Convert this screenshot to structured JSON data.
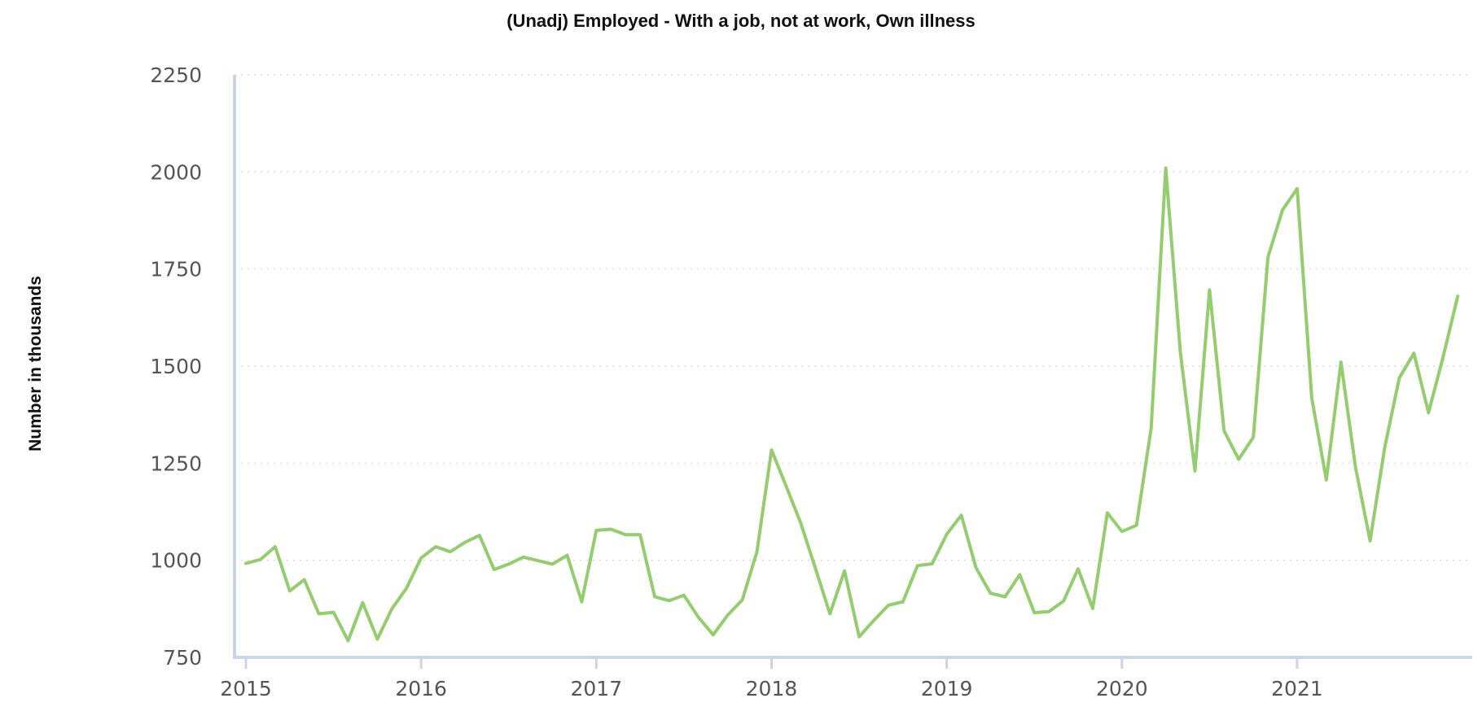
{
  "chart_data": {
    "type": "line",
    "title": "(Unadj) Employed - With a job, not at work, Own illness",
    "xlabel": "",
    "ylabel": "Number in thousands",
    "ylim": [
      750,
      2250
    ],
    "yticks": [
      750,
      1000,
      1250,
      1500,
      1750,
      2000,
      2250
    ],
    "xticks": [
      "2015",
      "2016",
      "2017",
      "2018",
      "2019",
      "2020",
      "2021"
    ],
    "x_start": "2015-01",
    "x_end": "2021-12",
    "grid": true,
    "legend": "none",
    "color": "#94cc6f",
    "series": [
      {
        "x": [
          "2015-01",
          "2015-02",
          "2015-03",
          "2015-04",
          "2015-05",
          "2015-06",
          "2015-07",
          "2015-08",
          "2015-09",
          "2015-10",
          "2015-11",
          "2015-12",
          "2016-01",
          "2016-02",
          "2016-03",
          "2016-04",
          "2016-05",
          "2016-06",
          "2016-07",
          "2016-08",
          "2016-09",
          "2016-10",
          "2016-11",
          "2016-12",
          "2017-01",
          "2017-02",
          "2017-03",
          "2017-04",
          "2017-05",
          "2017-06",
          "2017-07",
          "2017-08",
          "2017-09",
          "2017-10",
          "2017-11",
          "2017-12",
          "2018-01",
          "2018-02",
          "2018-03",
          "2018-04",
          "2018-05",
          "2018-06",
          "2018-07",
          "2018-08",
          "2018-09",
          "2018-10",
          "2018-11",
          "2018-12",
          "2019-01",
          "2019-02",
          "2019-03",
          "2019-04",
          "2019-05",
          "2019-06",
          "2019-07",
          "2019-08",
          "2019-09",
          "2019-10",
          "2019-11",
          "2019-12",
          "2020-01",
          "2020-02",
          "2020-03",
          "2020-04",
          "2020-05",
          "2020-06",
          "2020-07",
          "2020-08",
          "2020-09",
          "2020-10",
          "2020-11",
          "2020-12",
          "2021-01",
          "2021-02",
          "2021-03",
          "2021-04",
          "2021-05",
          "2021-06",
          "2021-07",
          "2021-08",
          "2021-09",
          "2021-10",
          "2021-11",
          "2021-12"
        ],
        "values": [
          992,
          1002,
          1035,
          921,
          950,
          862,
          866,
          793,
          891,
          797,
          875,
          928,
          1006,
          1035,
          1022,
          1046,
          1064,
          976,
          990,
          1008,
          999,
          990,
          1013,
          893,
          1077,
          1080,
          1066,
          1066,
          906,
          896,
          910,
          853,
          808,
          859,
          898,
          1021,
          1284,
          1191,
          1096,
          980,
          862,
          973,
          803,
          845,
          884,
          893,
          986,
          991,
          1067,
          1116,
          981,
          915,
          906,
          963,
          865,
          868,
          895,
          978,
          876,
          1122,
          1074,
          1090,
          1340,
          2010,
          1537,
          1230,
          1696,
          1333,
          1260,
          1317,
          1780,
          1902,
          1957,
          1418,
          1207,
          1510,
          1239,
          1050,
          1290,
          1470,
          1533,
          1380,
          1524,
          1680
        ]
      }
    ]
  }
}
